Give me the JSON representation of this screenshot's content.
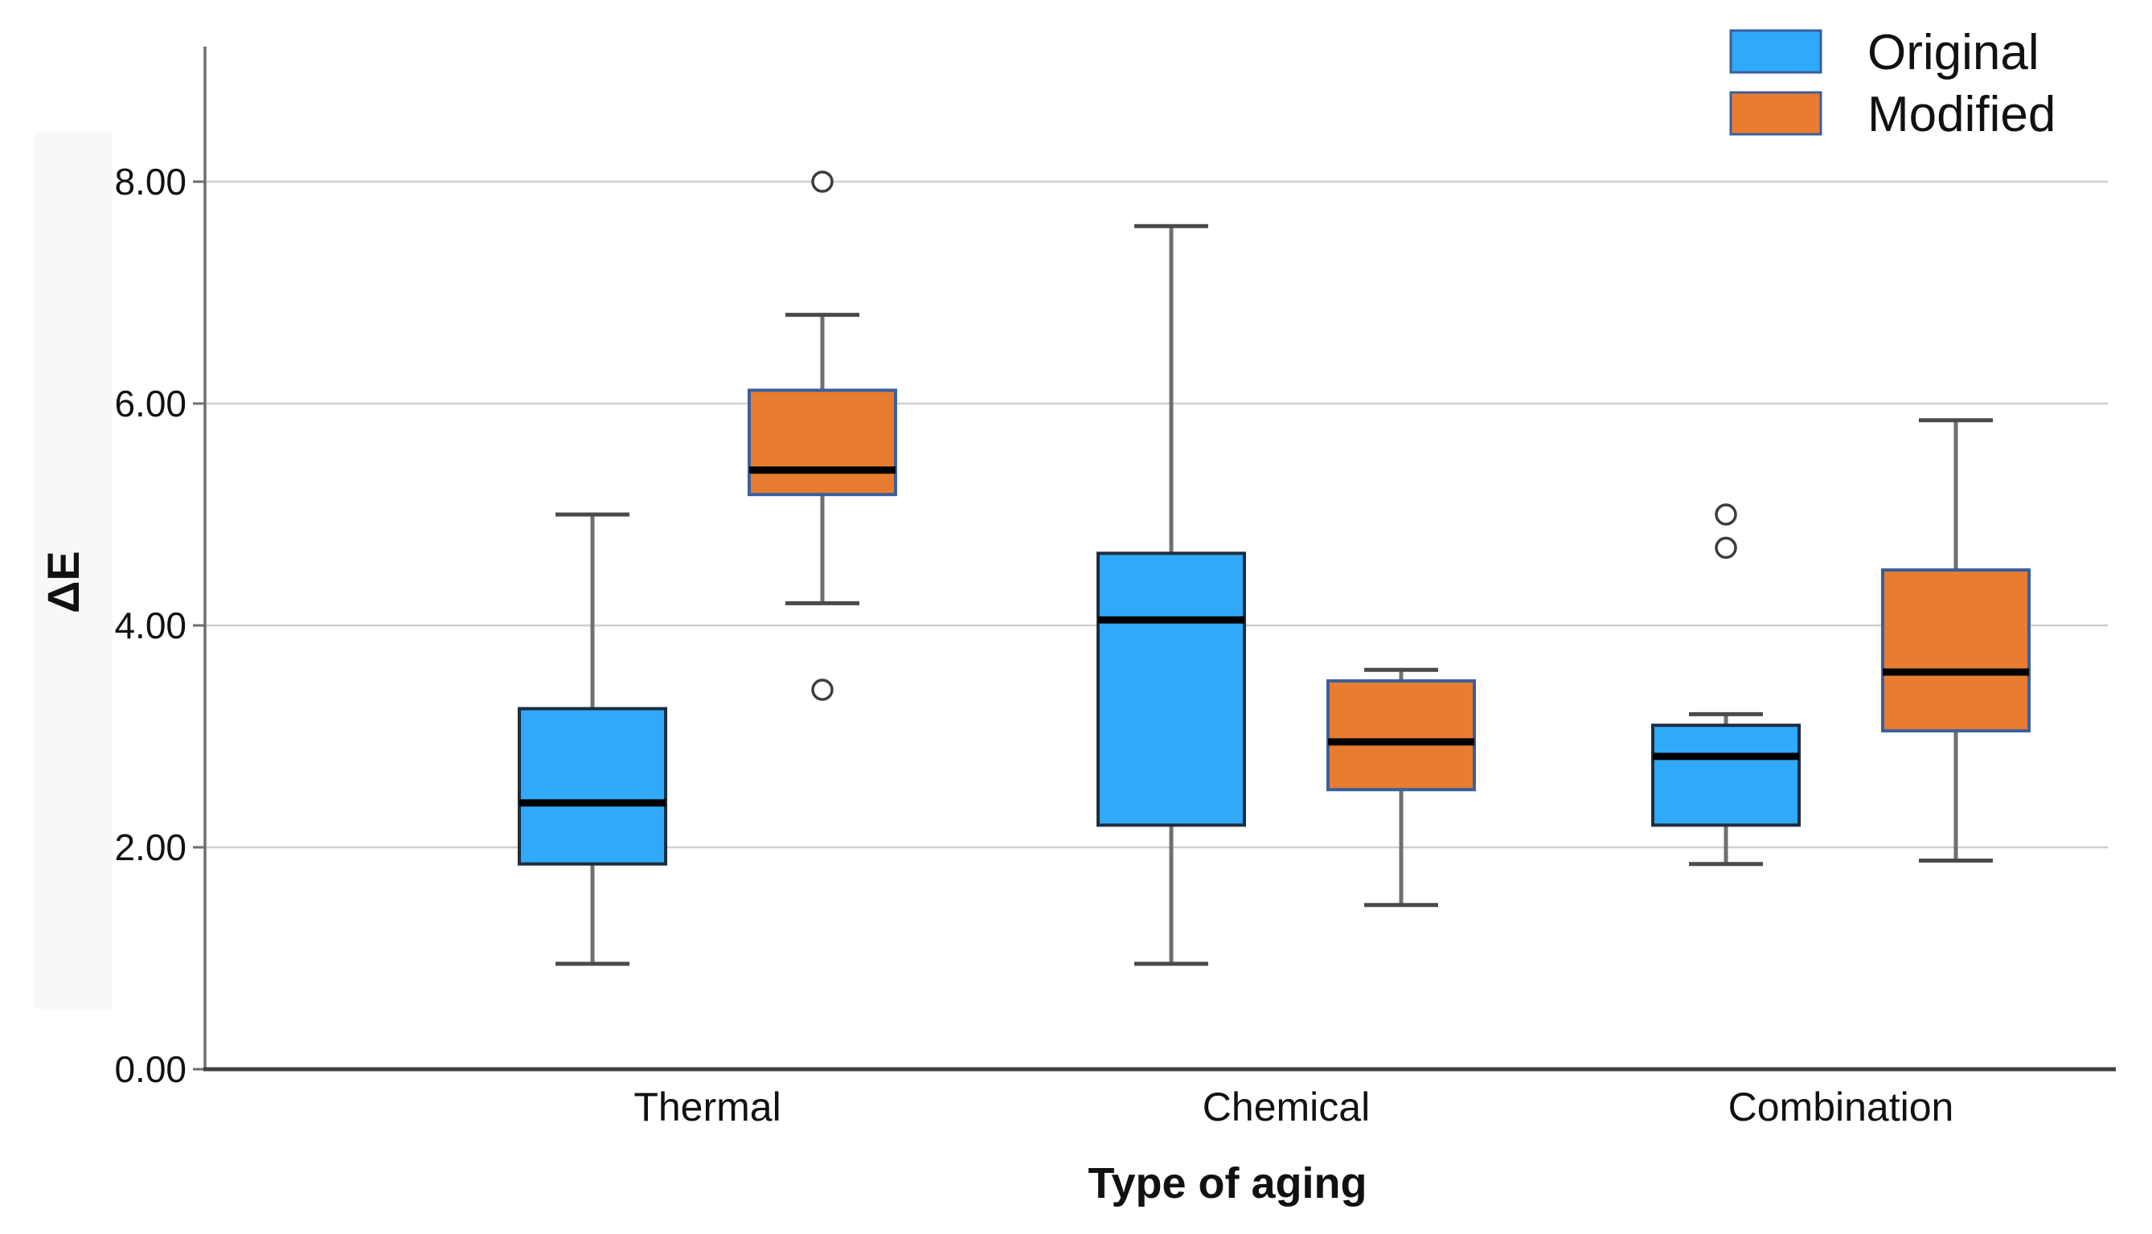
{
  "page": {
    "background": "#ffffff"
  },
  "chart_data": {
    "type": "boxplot",
    "title": "",
    "xlabel": "Type of aging",
    "ylabel": "ΔE",
    "categories": [
      "Thermal",
      "Chemical",
      "Combination"
    ],
    "y_axis": {
      "tick_values": [
        0,
        2,
        4,
        6,
        8
      ],
      "tick_labels": [
        "0.00",
        "2.00",
        "4.00",
        "6.00",
        "8.00"
      ],
      "grid_values": [
        2,
        4,
        6,
        8
      ],
      "min": 0,
      "max": 9.2,
      "grid": true
    },
    "legend": {
      "position": "top-right",
      "entries": [
        {
          "label": "Original",
          "color": "#30A9F9"
        },
        {
          "label": "Modified",
          "color": "#E87C30"
        }
      ]
    },
    "series": [
      {
        "name": "Original",
        "fill": "#30A9F9",
        "stroke": "#1E2D3D",
        "boxes": [
          {
            "category": "Thermal",
            "whisker_low": 0.95,
            "q1": 1.85,
            "median": 2.4,
            "q3": 3.25,
            "whisker_high": 5.0,
            "outliers": []
          },
          {
            "category": "Chemical",
            "whisker_low": 0.95,
            "q1": 2.2,
            "median": 4.05,
            "q3": 4.65,
            "whisker_high": 7.6,
            "outliers": []
          },
          {
            "category": "Combination",
            "whisker_low": 1.85,
            "q1": 2.2,
            "median": 2.82,
            "q3": 3.1,
            "whisker_high": 3.2,
            "outliers": [
              5.0,
              4.7
            ]
          }
        ]
      },
      {
        "name": "Modified",
        "fill": "#E87C30",
        "stroke": "#3A5F9E",
        "boxes": [
          {
            "category": "Thermal",
            "whisker_low": 4.2,
            "q1": 5.18,
            "median": 5.4,
            "q3": 6.12,
            "whisker_high": 6.8,
            "outliers": [
              8.0,
              3.42
            ]
          },
          {
            "category": "Chemical",
            "whisker_low": 1.48,
            "q1": 2.52,
            "median": 2.95,
            "q3": 3.5,
            "whisker_high": 3.6,
            "outliers": []
          },
          {
            "category": "Combination",
            "whisker_low": 1.88,
            "q1": 3.05,
            "median": 3.58,
            "q3": 4.5,
            "whisker_high": 5.85,
            "outliers": []
          }
        ]
      }
    ],
    "colors": {
      "median": "#000000",
      "whisker": "#6F6F6F",
      "whisker_cap": "#4A4A4A",
      "grid": "#CFCFCF",
      "axis_y": "#6E6E6E",
      "axis_x": "#3F3F3F",
      "outlier_stroke": "#3D3D3D",
      "text": "#111111"
    }
  }
}
